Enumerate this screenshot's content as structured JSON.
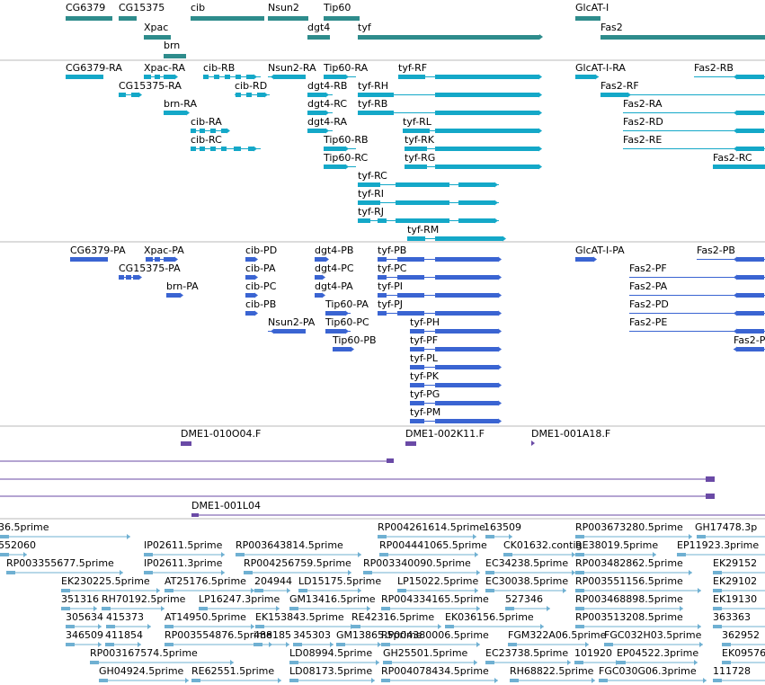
{
  "colors": {
    "gene": "#2e8c8c",
    "mrna": "#14a8c8",
    "protein": "#3a64d2",
    "clone": "#6a4aa6",
    "est": "#6fb0d2",
    "divider": "#b8b8b8"
  },
  "gene_track": {
    "labels": [
      "CG6379",
      "CG15375",
      "cib",
      "Nsun2",
      "Tip60",
      "Xpac",
      "dgt4",
      "tyf",
      "brn",
      "GlcAT-I",
      "Fas2"
    ]
  },
  "transcript_track": {
    "labels": [
      "CG6379-RA",
      "Xpac-RA",
      "cib-RB",
      "Nsun2-RA",
      "Tip60-RA",
      "tyf-RF",
      "GlcAT-I-RA",
      "Fas2-RB",
      "CG15375-RA",
      "cib-RD",
      "dgt4-RB",
      "tyf-RH",
      "Fas2-RF",
      "brn-RA",
      "dgt4-RC",
      "tyf-RB",
      "Fas2-RA",
      "cib-RA",
      "dgt4-RA",
      "tyf-RL",
      "Fas2-RD",
      "cib-RC",
      "Tip60-RB",
      "tyf-RK",
      "Fas2-RE",
      "Tip60-RC",
      "tyf-RG",
      "Fas2-RC",
      "tyf-RC",
      "tyf-RI",
      "tyf-RJ",
      "tyf-RM"
    ]
  },
  "protein_track": {
    "labels": [
      "CG6379-PA",
      "Xpac-PA",
      "cib-PD",
      "dgt4-PB",
      "tyf-PB",
      "GlcAT-I-PA",
      "Fas2-PB",
      "CG15375-PA",
      "cib-PA",
      "dgt4-PC",
      "tyf-PC",
      "Fas2-PF",
      "brn-PA",
      "cib-PC",
      "dgt4-PA",
      "tyf-PI",
      "Fas2-PA",
      "cib-PB",
      "Tip60-PA",
      "tyf-PJ",
      "Fas2-PD",
      "Nsun2-PA",
      "Tip60-PC",
      "tyf-PH",
      "Fas2-PE",
      "Tip60-PB",
      "tyf-PF",
      "Fas2-P",
      "tyf-PL",
      "tyf-PK",
      "tyf-PG",
      "tyf-PM"
    ]
  },
  "clone_track": {
    "labels": [
      "DME1-010O04.F",
      "DME1-002K11.F",
      "DME1-001A18.F",
      "DME1-001L04"
    ]
  },
  "est_track": {
    "labels": [
      "36.5prime",
      "RP004261614.5prime",
      "163509",
      "RP003673280.5prime",
      "GH17478.3p",
      "552060",
      "IP02611.5prime",
      "RP003643814.5prime",
      "RP004441065.5prime",
      "CK01632.contig",
      "RE38019.5prime",
      "EP11923.3prime",
      "RP003355677.5prime",
      "IP02611.3prime",
      "RP004256759.5prime",
      "RP003340090.5prime",
      "EC34238.5prime",
      "RP003482862.5prime",
      "EK29152",
      "EK230225.5prime",
      "AT25176.5prime",
      "204944",
      "LD15175.5prime",
      "LP15022.5prime",
      "EC30038.5prime",
      "RP003551156.5prime",
      "EK29102",
      "351316",
      "RH70192.5prime",
      "LP16247.3prime",
      "GM13416.5prime",
      "RP004334165.5prime",
      "527346",
      "RP003468898.5prime",
      "EK19130",
      "305634",
      "415373",
      "AT14950.5prime",
      "EK153843.5prime",
      "RE42316.5prime",
      "EK036156.5prime",
      "RP003513208.5prime",
      "363363",
      "346509",
      "411854",
      "RP003554876.5prime",
      "488185",
      "345303",
      "GM13865.5prime",
      "RP004380006.5prime",
      "FGM322A06.5prime",
      "FGC032H03.5prime",
      "362952",
      "RP003167574.5prime",
      "LD08994.5prime",
      "GH25501.5prime",
      "EC23738.5prime",
      "101920",
      "EP04522.3prime",
      "EK09576",
      "GH04924.5prime",
      "RE62551.5prime",
      "LD08173.5prime",
      "RP004078434.5prime",
      "RH68822.5prime",
      "FGC030G06.3prime",
      "111728"
    ]
  }
}
